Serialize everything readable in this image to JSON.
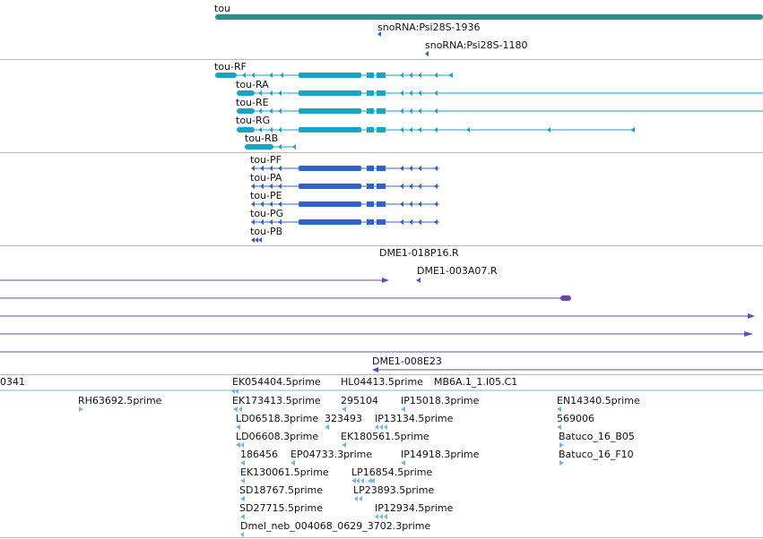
{
  "colors": {
    "gene": "#2a8f8b",
    "transcript": "#19a3c4",
    "cds": "#2f63c9",
    "clone": "#6e45b5",
    "est": "#7ab4dc",
    "separator": "#b9b9b9"
  },
  "gene": {
    "label": "tou"
  },
  "snornas": [
    {
      "label": "snoRNA:Psi28S-1936"
    },
    {
      "label": "snoRNA:Psi28S-1180"
    }
  ],
  "transcripts": [
    {
      "label": "tou-RF"
    },
    {
      "label": "tou-RA"
    },
    {
      "label": "tou-RE"
    },
    {
      "label": "tou-RG"
    },
    {
      "label": "tou-RB"
    }
  ],
  "proteins": [
    {
      "label": "tou-PF"
    },
    {
      "label": "tou-PA"
    },
    {
      "label": "tou-PE"
    },
    {
      "label": "tou-PG"
    },
    {
      "label": "tou-PB"
    }
  ],
  "clones": [
    {
      "label": "DME1-018P16.R"
    },
    {
      "label": "DME1-003A07.R"
    },
    {
      "label": "DME1-008E23"
    }
  ],
  "ests": [
    {
      "label": "0341"
    },
    {
      "label": "EK054404.5prime"
    },
    {
      "label": "HL04413.5prime"
    },
    {
      "label": "MB6A.1_1.I05.C1"
    },
    {
      "label": "RH63692.5prime"
    },
    {
      "label": "EK173413.5prime"
    },
    {
      "label": "295104"
    },
    {
      "label": "IP15018.3prime"
    },
    {
      "label": "EN14340.5prime"
    },
    {
      "label": "LD06518.3prime"
    },
    {
      "label": "323493"
    },
    {
      "label": "IP13134.5prime"
    },
    {
      "label": "569006"
    },
    {
      "label": "LD06608.3prime"
    },
    {
      "label": "EK180561.5prime"
    },
    {
      "label": "Batuco_16_B05"
    },
    {
      "label": "186456"
    },
    {
      "label": "EP04733.3prime"
    },
    {
      "label": "IP14918.3prime"
    },
    {
      "label": "Batuco_16_F10"
    },
    {
      "label": "EK130061.5prime"
    },
    {
      "label": "LP16854.5prime"
    },
    {
      "label": "SD18767.5prime"
    },
    {
      "label": "LP23893.5prime"
    },
    {
      "label": "SD27715.5prime"
    },
    {
      "label": "IP12934.5prime"
    },
    {
      "label": "Dmel_neb_004068_0629_3702.3prime"
    }
  ]
}
